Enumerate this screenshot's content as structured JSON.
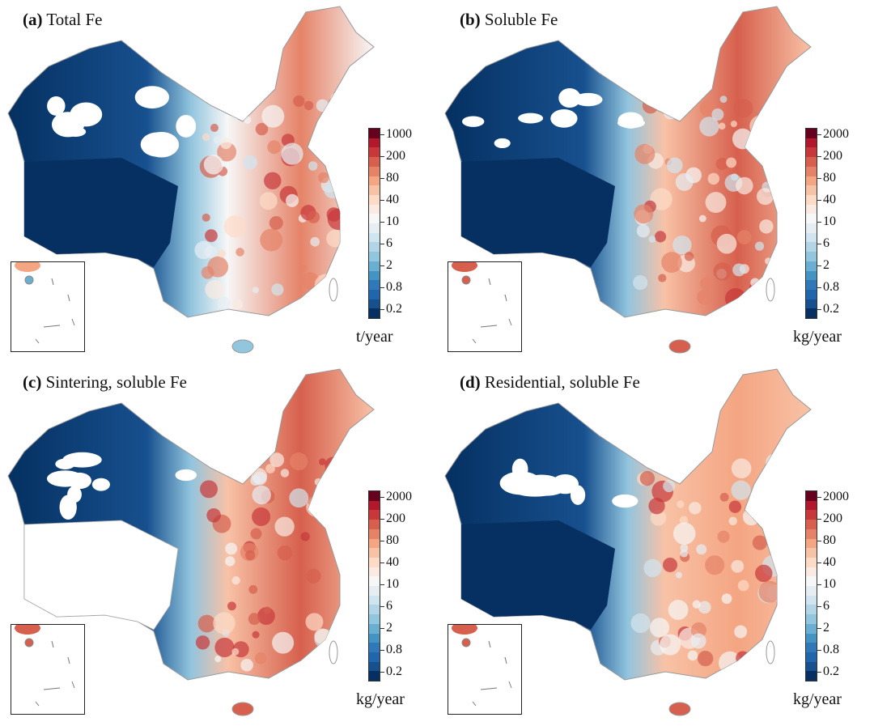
{
  "panels": [
    {
      "label": "(a)",
      "title": "Total Fe",
      "unit": "t/year",
      "ticks": [
        "1000",
        "200",
        "80",
        "40",
        "10",
        "6",
        "2",
        "0.8",
        "0.2"
      ],
      "pattern": "total",
      "tibet_empty": false
    },
    {
      "label": "(b)",
      "title": "Soluble Fe",
      "unit": "kg/year",
      "ticks": [
        "2000",
        "200",
        "80",
        "40",
        "10",
        "6",
        "2",
        "0.8",
        "0.2"
      ],
      "pattern": "soluble",
      "tibet_empty": false
    },
    {
      "label": "(c)",
      "title": "Sintering, soluble Fe",
      "unit": "kg/year",
      "ticks": [
        "2000",
        "200",
        "80",
        "40",
        "10",
        "6",
        "2",
        "0.8",
        "0.2"
      ],
      "pattern": "sintering",
      "tibet_empty": true
    },
    {
      "label": "(d)",
      "title": "Residential, soluble Fe",
      "unit": "kg/year",
      "ticks": [
        "2000",
        "200",
        "80",
        "40",
        "10",
        "6",
        "2",
        "0.8",
        "0.2"
      ],
      "pattern": "residential",
      "tibet_empty": false
    }
  ],
  "colormap": [
    "#67001f",
    "#b2182b",
    "#c8373a",
    "#d6604d",
    "#e58368",
    "#f4a582",
    "#f8c2a6",
    "#fddbc7",
    "#f9ebe3",
    "#f7f7f7",
    "#e7eef3",
    "#d1e5f0",
    "#b3d5e8",
    "#92c5de",
    "#6aaed1",
    "#4393c3",
    "#3178b8",
    "#2166ac",
    "#17508e",
    "#053061"
  ]
}
